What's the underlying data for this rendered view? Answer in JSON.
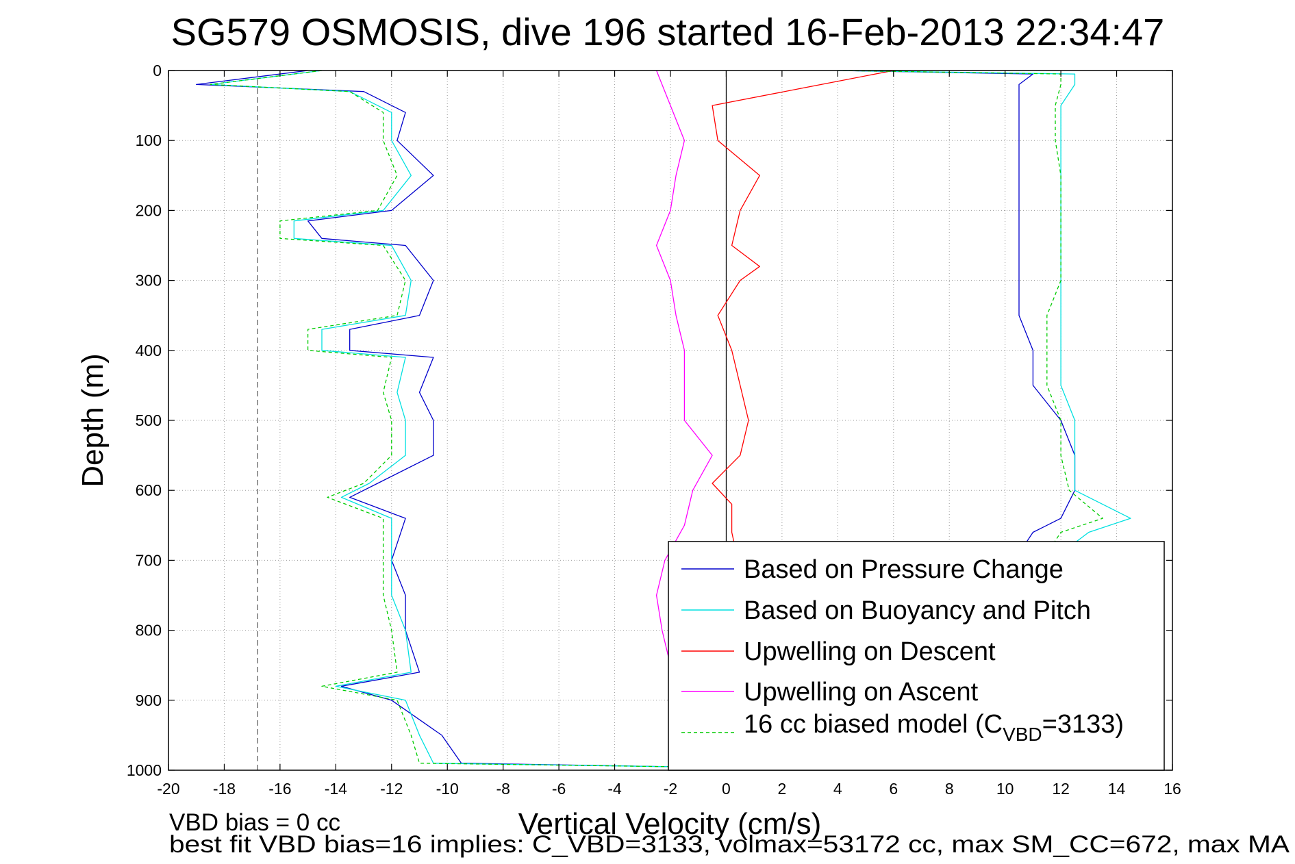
{
  "chart_data": {
    "type": "line",
    "title": "SG579 OSMOSIS, dive 196 started 16-Feb-2013 22:34:47",
    "xlabel": "Vertical Velocity (cm/s)",
    "ylabel": "Depth (m)",
    "xlim": [
      -20,
      16
    ],
    "ylim": [
      0,
      1000
    ],
    "y_reversed": true,
    "grid": true,
    "x_ticks": [
      "-20",
      "-18",
      "-16",
      "-14",
      "-12",
      "-10",
      "-8",
      "-6",
      "-4",
      "-2",
      "0",
      "2",
      "4",
      "6",
      "8",
      "10",
      "12",
      "14",
      "16"
    ],
    "y_ticks": [
      "0",
      "100",
      "200",
      "300",
      "400",
      "500",
      "600",
      "700",
      "800",
      "900",
      "1000"
    ],
    "reference_lines": [
      {
        "axis": "x",
        "value": 0,
        "style": "solid"
      },
      {
        "axis": "x",
        "value": -16.8,
        "style": "dashed"
      }
    ],
    "legend_position": "bottom-right",
    "legend": {
      "entries": [
        {
          "label": "Based on Pressure Change",
          "series": 0
        },
        {
          "label": "Based on Buoyancy and Pitch",
          "series": 1
        },
        {
          "label": "Upwelling on Descent",
          "series": 2
        },
        {
          "label": "Upwelling on Ascent",
          "series": 3
        }
      ],
      "model_entry": {
        "prefix": "16 cc biased model (C",
        "subscript": "VBD",
        "suffix": "=3133)"
      }
    },
    "series": [
      {
        "color": "#0000cc",
        "style": "solid",
        "depth": [
          0,
          20,
          30,
          60,
          100,
          150,
          200,
          215,
          240,
          250,
          300,
          350,
          370,
          400,
          410,
          460,
          500,
          550,
          590,
          610,
          640,
          700,
          750,
          800,
          860,
          880,
          900,
          950,
          990,
          995,
          1000,
          990,
          950,
          900,
          850,
          800,
          750,
          700,
          690,
          660,
          640,
          600,
          550,
          500,
          450,
          400,
          350,
          300,
          250,
          200,
          150,
          100,
          50,
          20,
          5,
          0
        ],
        "velocity": [
          -15,
          -19,
          -13,
          -11.5,
          -11.8,
          -10.5,
          -12,
          -15,
          -14.5,
          -11.5,
          -10.5,
          -11,
          -13.5,
          -13.5,
          -10.5,
          -11,
          -10.5,
          -10.5,
          -12.5,
          -13.5,
          -11.5,
          -12,
          -11.5,
          -11.5,
          -11,
          -13.8,
          -12,
          -10.2,
          -9.5,
          -2,
          10,
          10,
          10,
          10,
          10,
          10,
          10,
          10,
          10.5,
          11,
          12,
          12.5,
          12.5,
          12,
          11,
          11,
          10.5,
          10.5,
          10.5,
          10.5,
          10.5,
          10.5,
          10.5,
          10.5,
          11,
          4
        ]
      },
      {
        "color": "#00e0e0",
        "style": "solid",
        "depth": [
          0,
          20,
          30,
          60,
          100,
          150,
          200,
          215,
          240,
          250,
          300,
          350,
          370,
          400,
          410,
          460,
          500,
          550,
          590,
          610,
          640,
          700,
          750,
          800,
          860,
          880,
          900,
          950,
          990,
          995,
          1000,
          990,
          950,
          900,
          850,
          800,
          750,
          700,
          690,
          660,
          640,
          600,
          550,
          500,
          450,
          400,
          350,
          300,
          250,
          200,
          150,
          100,
          50,
          20,
          5,
          0
        ],
        "velocity": [
          -14.5,
          -18.5,
          -13.5,
          -12,
          -12,
          -11.3,
          -12.3,
          -15.5,
          -15.5,
          -12,
          -11.3,
          -11.5,
          -14.5,
          -14.5,
          -11.5,
          -11.8,
          -11.5,
          -11.5,
          -12.8,
          -13.8,
          -12,
          -12,
          -12,
          -11.5,
          -11.3,
          -14,
          -11.5,
          -11,
          -10.5,
          -2,
          10,
          11,
          11.5,
          11.5,
          11.5,
          11.5,
          12,
          12,
          12,
          13,
          14.5,
          12.5,
          12.5,
          12.5,
          12,
          12,
          12,
          12,
          12,
          12,
          12,
          12,
          12,
          12.5,
          12.5,
          4
        ]
      },
      {
        "color": "#ff0000",
        "style": "solid",
        "depth": [
          0,
          50,
          100,
          150,
          200,
          250,
          280,
          300,
          350,
          400,
          450,
          500,
          550,
          590,
          620,
          660,
          990
        ],
        "velocity": [
          6,
          -0.5,
          -0.3,
          1.2,
          0.5,
          0.2,
          1.2,
          0.5,
          -0.3,
          0.2,
          0.5,
          0.8,
          0.5,
          -0.5,
          0.2,
          0.2,
          2
        ]
      },
      {
        "color": "#ff00ff",
        "style": "solid",
        "depth": [
          0,
          50,
          100,
          150,
          200,
          250,
          300,
          350,
          400,
          450,
          500,
          550,
          600,
          650,
          700,
          750,
          800,
          850
        ],
        "velocity": [
          -2.5,
          -2,
          -1.5,
          -1.8,
          -2,
          -2.5,
          -2,
          -1.8,
          -1.5,
          -1.5,
          -1.5,
          -0.5,
          -1.2,
          -1.5,
          -2.2,
          -2.5,
          -2.3,
          -2
        ]
      },
      {
        "color": "#00cc00",
        "style": "dashed",
        "depth": [
          0,
          20,
          30,
          60,
          100,
          150,
          200,
          215,
          240,
          250,
          300,
          350,
          370,
          400,
          410,
          460,
          500,
          550,
          590,
          610,
          640,
          700,
          750,
          800,
          860,
          880,
          900,
          950,
          990,
          995,
          1000,
          990,
          950,
          900,
          850,
          800,
          750,
          700,
          690,
          660,
          640,
          600,
          550,
          500,
          450,
          400,
          350,
          300,
          250,
          200,
          150,
          100,
          50,
          20,
          5,
          0
        ],
        "velocity": [
          -14.5,
          -18.5,
          -13.5,
          -12.3,
          -12.3,
          -11.8,
          -12.5,
          -16,
          -16,
          -12.3,
          -11.5,
          -11.8,
          -15,
          -15,
          -12,
          -12.3,
          -12,
          -12,
          -13,
          -14.3,
          -12.3,
          -12.3,
          -12.3,
          -12,
          -11.8,
          -14.5,
          -11.8,
          -11.3,
          -11,
          -2,
          10,
          11,
          11.5,
          11.5,
          11.5,
          11.5,
          11.5,
          11.5,
          11.5,
          12,
          13.5,
          12.3,
          12,
          12,
          11.5,
          11.5,
          11.5,
          12,
          12,
          12,
          12,
          11.8,
          11.8,
          12,
          12,
          4
        ]
      }
    ]
  },
  "footnotes": {
    "line1": "VBD bias = 0 cc",
    "line2": "best fit VBD bias=16 implies: C_VBD=3133, volmax=53172 cc, max SM_CC=672, max MA"
  }
}
